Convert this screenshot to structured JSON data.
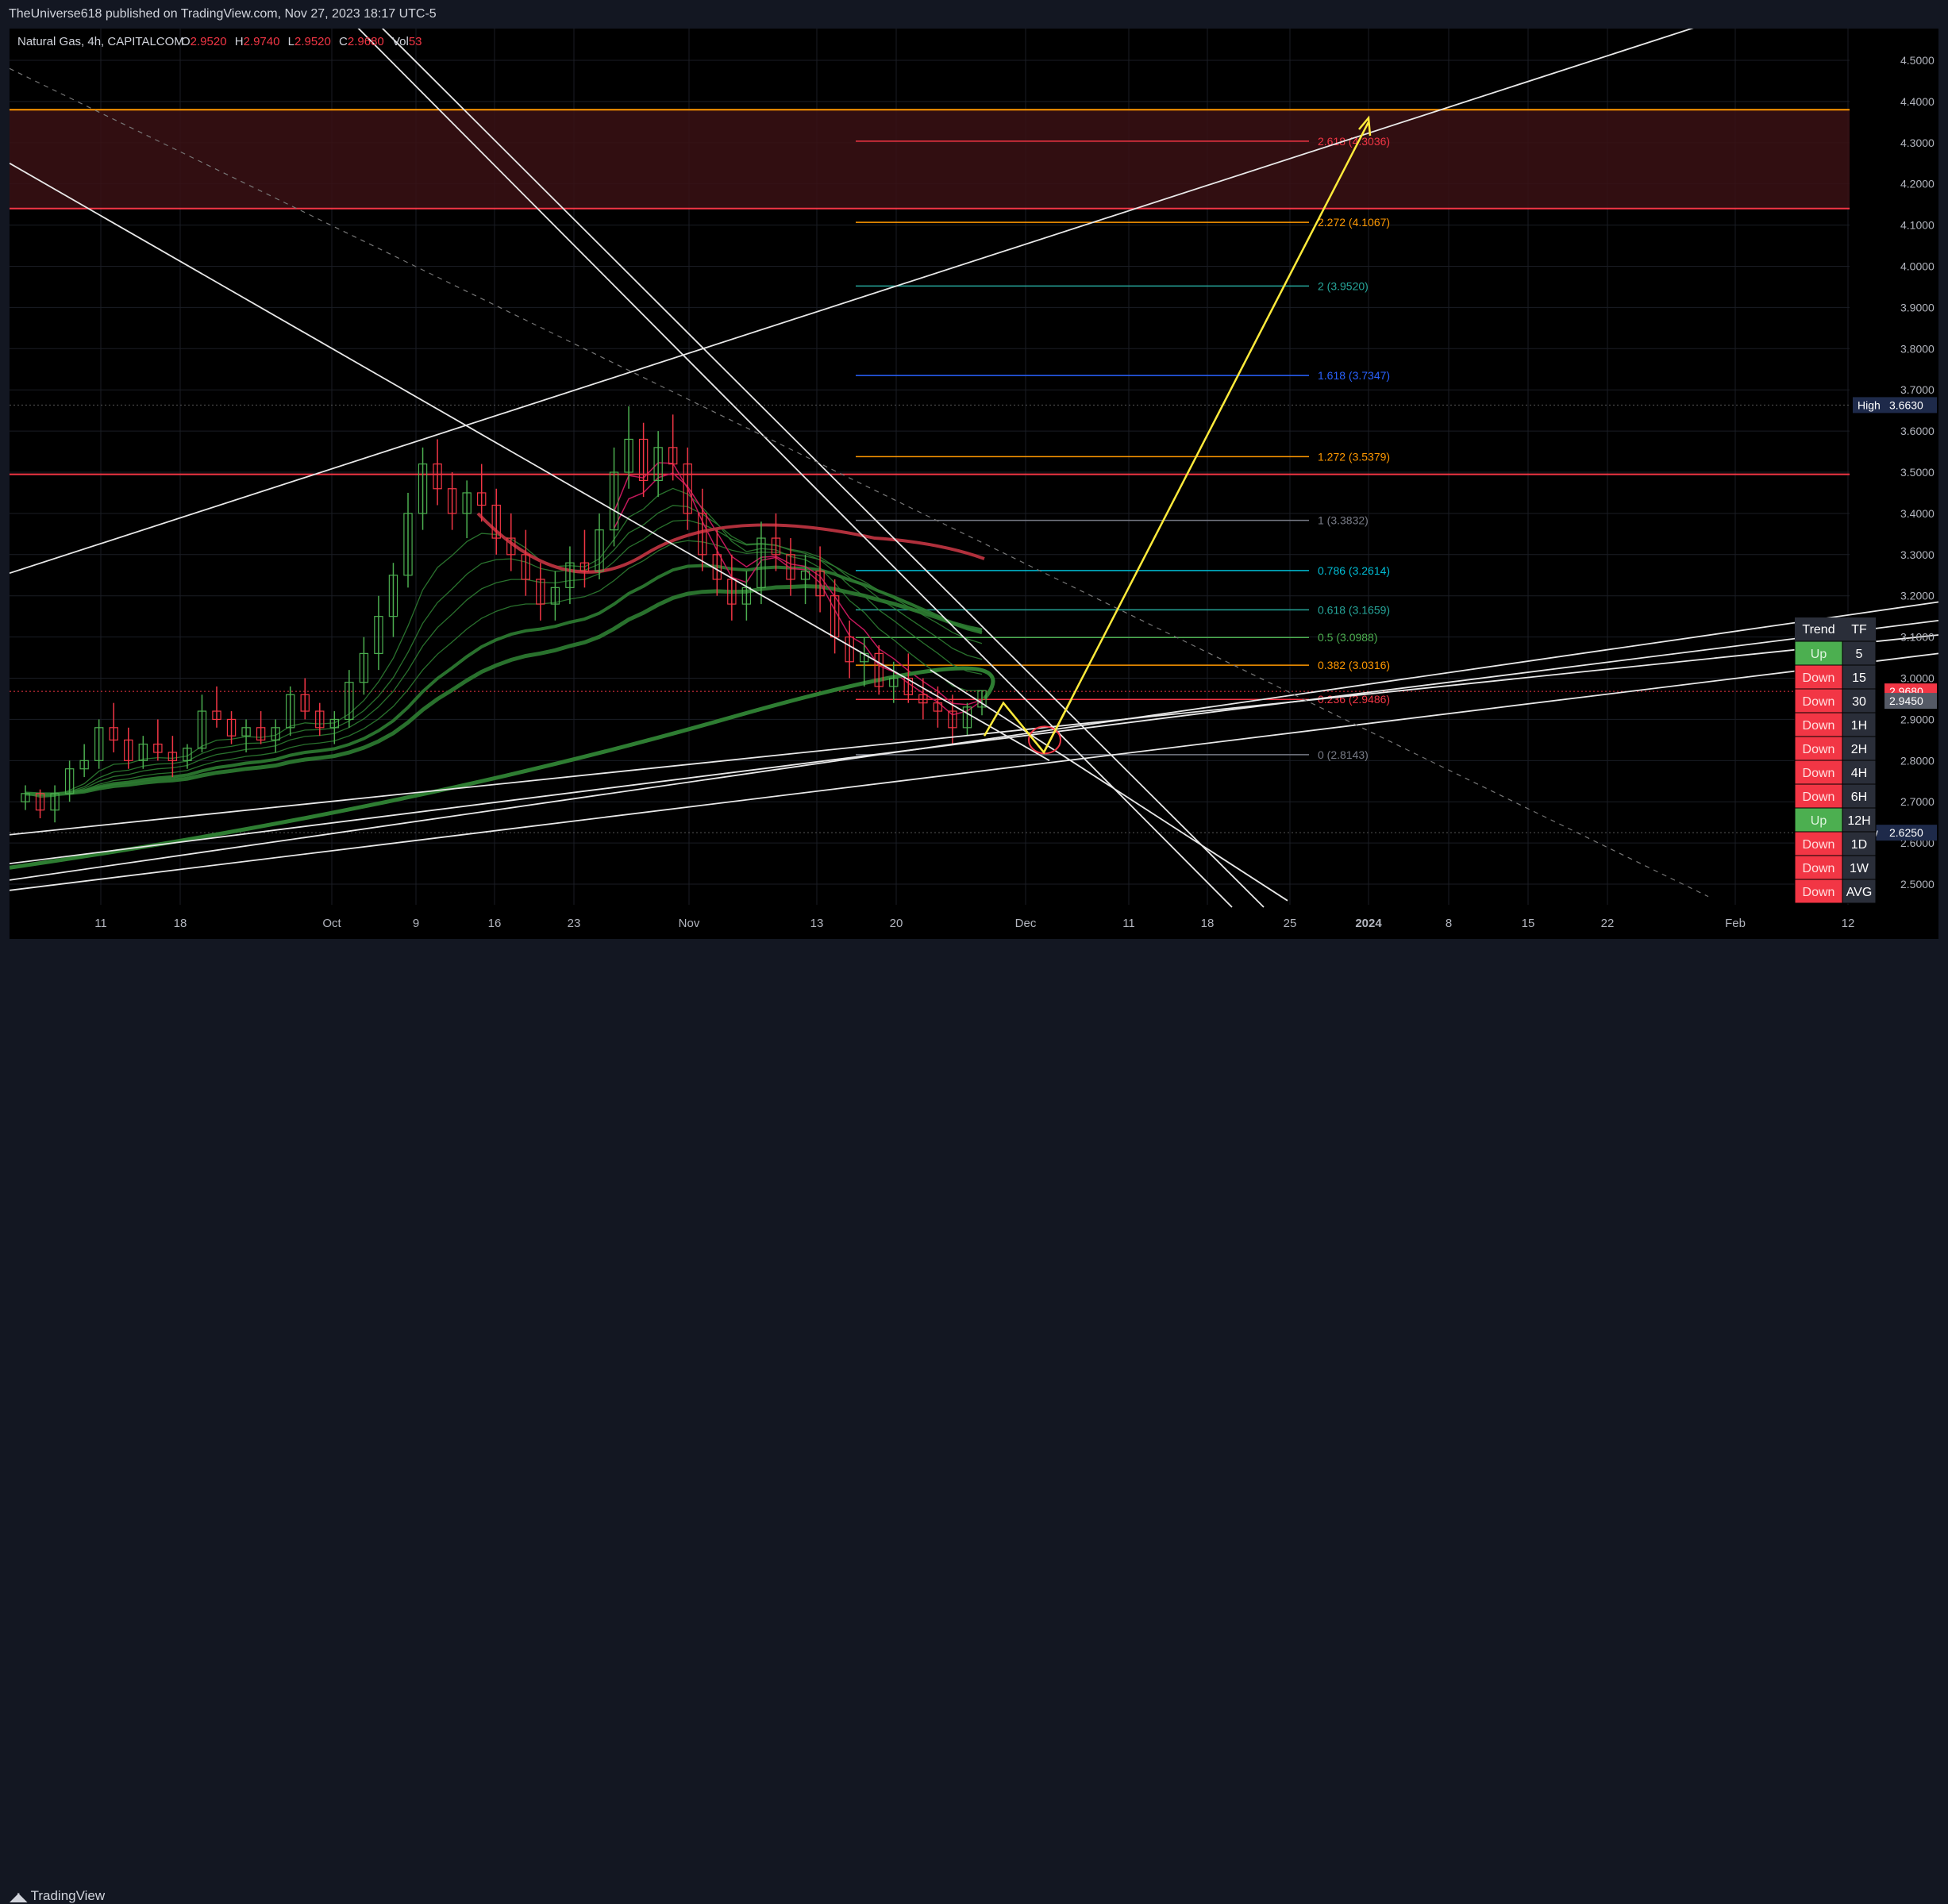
{
  "header": {
    "attribution": "TheUniverse618 published on TradingView.com, Nov 27, 2023 18:17 UTC-5"
  },
  "legend": {
    "symbol": "Natural Gas, 4h, CAPITALCOM",
    "o_label": "O",
    "o_value": "2.9520",
    "h_label": "H",
    "h_value": "2.9740",
    "l_label": "L",
    "l_value": "2.9520",
    "c_label": "C",
    "c_value": "2.9680",
    "vol_label": "Vol",
    "vol_value": "53"
  },
  "footer": {
    "brand": "TradingView"
  },
  "colors": {
    "background": "#000000",
    "up": "#4caf50",
    "down": "#f23645",
    "ema_red": "#c2185b",
    "ema_green": "#2e7d32",
    "resistance_zone": "#3a1014",
    "projection": "#ffeb3b"
  },
  "chart_data": {
    "type": "candlestick",
    "title": "",
    "symbol": "Natural Gas",
    "interval": "4h",
    "ylim": [
      2.45,
      4.55
    ],
    "y_ticks": [
      "4.5000",
      "4.4000",
      "4.3000",
      "4.2000",
      "4.1000",
      "4.0000",
      "3.9000",
      "3.8000",
      "3.7000",
      "3.6000",
      "3.5000",
      "3.4000",
      "3.3000",
      "3.2000",
      "3.1000",
      "3.0000",
      "2.9000",
      "2.8000",
      "2.7000",
      "2.6000",
      "2.5000"
    ],
    "x_ticks": [
      "11",
      "18",
      "Oct",
      "9",
      "16",
      "23",
      "Nov",
      "13",
      "20",
      "Dec",
      "11",
      "18",
      "25",
      "2024",
      "8",
      "15",
      "22",
      "Feb",
      "12"
    ],
    "price_labels": {
      "high": {
        "label": "High",
        "value": "3.6630"
      },
      "last": {
        "value": "2.9680"
      },
      "prev": {
        "value": "2.9450"
      },
      "low": {
        "label": "Low",
        "value": "2.6250"
      }
    },
    "fib_levels": [
      {
        "ratio": "2.618",
        "price": "4.3036",
        "label": "2.618 (4.3036)",
        "color": "#f23645"
      },
      {
        "ratio": "2.272",
        "price": "4.1067",
        "label": "2.272 (4.1067)",
        "color": "#ff9800"
      },
      {
        "ratio": "2",
        "price": "3.9520",
        "label": "2 (3.9520)",
        "color": "#26a69a"
      },
      {
        "ratio": "1.618",
        "price": "3.7347",
        "label": "1.618 (3.7347)",
        "color": "#2962ff"
      },
      {
        "ratio": "1.272",
        "price": "3.5379",
        "label": "1.272 (3.5379)",
        "color": "#ff9800"
      },
      {
        "ratio": "1",
        "price": "3.3832",
        "label": "1 (3.3832)",
        "color": "#787b86"
      },
      {
        "ratio": "0.786",
        "price": "3.2614",
        "label": "0.786 (3.2614)",
        "color": "#00bcd4"
      },
      {
        "ratio": "0.618",
        "price": "3.1659",
        "label": "0.618 (3.1659)",
        "color": "#26a69a"
      },
      {
        "ratio": "0.5",
        "price": "3.0988",
        "label": "0.5 (3.0988)",
        "color": "#4caf50"
      },
      {
        "ratio": "0.382",
        "price": "3.0316",
        "label": "0.382 (3.0316)",
        "color": "#ff9800"
      },
      {
        "ratio": "0.236",
        "price": "2.9486",
        "label": "0.236 (2.9486)",
        "color": "#f23645"
      },
      {
        "ratio": "0",
        "price": "2.8143",
        "label": "0 (2.8143)",
        "color": "#787b86"
      }
    ],
    "horizontal_levels": [
      {
        "price": 4.38,
        "color": "#ff9800"
      },
      {
        "price": 4.14,
        "color": "#f23645"
      },
      {
        "price": 3.495,
        "color": "#f23645"
      }
    ],
    "resistance_zone": {
      "from": 4.14,
      "to": 4.38
    },
    "candles": [
      [
        2.7,
        2.74,
        2.68,
        2.72
      ],
      [
        2.72,
        2.73,
        2.66,
        2.68
      ],
      [
        2.68,
        2.74,
        2.65,
        2.72
      ],
      [
        2.72,
        2.8,
        2.7,
        2.78
      ],
      [
        2.78,
        2.84,
        2.76,
        2.8
      ],
      [
        2.8,
        2.9,
        2.78,
        2.88
      ],
      [
        2.88,
        2.94,
        2.82,
        2.85
      ],
      [
        2.85,
        2.88,
        2.78,
        2.8
      ],
      [
        2.8,
        2.86,
        2.78,
        2.84
      ],
      [
        2.84,
        2.9,
        2.8,
        2.82
      ],
      [
        2.82,
        2.86,
        2.76,
        2.8
      ],
      [
        2.8,
        2.84,
        2.78,
        2.83
      ],
      [
        2.83,
        2.96,
        2.82,
        2.92
      ],
      [
        2.92,
        2.98,
        2.88,
        2.9
      ],
      [
        2.9,
        2.92,
        2.84,
        2.86
      ],
      [
        2.86,
        2.9,
        2.82,
        2.88
      ],
      [
        2.88,
        2.92,
        2.84,
        2.85
      ],
      [
        2.85,
        2.9,
        2.82,
        2.88
      ],
      [
        2.88,
        2.98,
        2.86,
        2.96
      ],
      [
        2.96,
        3.0,
        2.9,
        2.92
      ],
      [
        2.92,
        2.94,
        2.86,
        2.88
      ],
      [
        2.88,
        2.92,
        2.84,
        2.9
      ],
      [
        2.9,
        3.02,
        2.88,
        2.99
      ],
      [
        2.99,
        3.1,
        2.96,
        3.06
      ],
      [
        3.06,
        3.2,
        3.02,
        3.15
      ],
      [
        3.15,
        3.28,
        3.1,
        3.25
      ],
      [
        3.25,
        3.45,
        3.22,
        3.4
      ],
      [
        3.4,
        3.56,
        3.36,
        3.52
      ],
      [
        3.52,
        3.58,
        3.42,
        3.46
      ],
      [
        3.46,
        3.5,
        3.36,
        3.4
      ],
      [
        3.4,
        3.48,
        3.34,
        3.45
      ],
      [
        3.45,
        3.52,
        3.38,
        3.42
      ],
      [
        3.42,
        3.46,
        3.3,
        3.34
      ],
      [
        3.34,
        3.4,
        3.26,
        3.3
      ],
      [
        3.3,
        3.36,
        3.2,
        3.24
      ],
      [
        3.24,
        3.28,
        3.14,
        3.18
      ],
      [
        3.18,
        3.26,
        3.14,
        3.22
      ],
      [
        3.22,
        3.32,
        3.18,
        3.28
      ],
      [
        3.28,
        3.36,
        3.22,
        3.26
      ],
      [
        3.26,
        3.4,
        3.24,
        3.36
      ],
      [
        3.36,
        3.56,
        3.32,
        3.5
      ],
      [
        3.5,
        3.66,
        3.46,
        3.58
      ],
      [
        3.58,
        3.62,
        3.44,
        3.48
      ],
      [
        3.48,
        3.6,
        3.44,
        3.56
      ],
      [
        3.56,
        3.64,
        3.48,
        3.52
      ],
      [
        3.52,
        3.56,
        3.36,
        3.4
      ],
      [
        3.4,
        3.46,
        3.26,
        3.3
      ],
      [
        3.3,
        3.36,
        3.2,
        3.24
      ],
      [
        3.24,
        3.3,
        3.14,
        3.18
      ],
      [
        3.18,
        3.26,
        3.14,
        3.22
      ],
      [
        3.22,
        3.38,
        3.18,
        3.34
      ],
      [
        3.34,
        3.4,
        3.26,
        3.3
      ],
      [
        3.3,
        3.34,
        3.2,
        3.24
      ],
      [
        3.24,
        3.3,
        3.18,
        3.26
      ],
      [
        3.26,
        3.32,
        3.16,
        3.2
      ],
      [
        3.2,
        3.24,
        3.06,
        3.1
      ],
      [
        3.1,
        3.14,
        3.0,
        3.04
      ],
      [
        3.04,
        3.1,
        2.98,
        3.06
      ],
      [
        3.06,
        3.08,
        2.96,
        2.98
      ],
      [
        2.98,
        3.04,
        2.94,
        3.0
      ],
      [
        3.0,
        3.06,
        2.94,
        2.96
      ],
      [
        2.96,
        3.0,
        2.9,
        2.94
      ],
      [
        2.94,
        2.98,
        2.88,
        2.92
      ],
      [
        2.92,
        2.96,
        2.84,
        2.88
      ],
      [
        2.88,
        2.94,
        2.86,
        2.93
      ],
      [
        2.93,
        2.97,
        2.91,
        2.97
      ]
    ]
  },
  "trend_table": {
    "headers": [
      "Trend",
      "TF"
    ],
    "rows": [
      {
        "trend": "Up",
        "tf": "5"
      },
      {
        "trend": "Down",
        "tf": "15"
      },
      {
        "trend": "Down",
        "tf": "30"
      },
      {
        "trend": "Down",
        "tf": "1H"
      },
      {
        "trend": "Down",
        "tf": "2H"
      },
      {
        "trend": "Down",
        "tf": "4H"
      },
      {
        "trend": "Down",
        "tf": "6H"
      },
      {
        "trend": "Up",
        "tf": "12H"
      },
      {
        "trend": "Down",
        "tf": "1D"
      },
      {
        "trend": "Down",
        "tf": "1W"
      },
      {
        "trend": "Down",
        "tf": "AVG"
      }
    ]
  }
}
